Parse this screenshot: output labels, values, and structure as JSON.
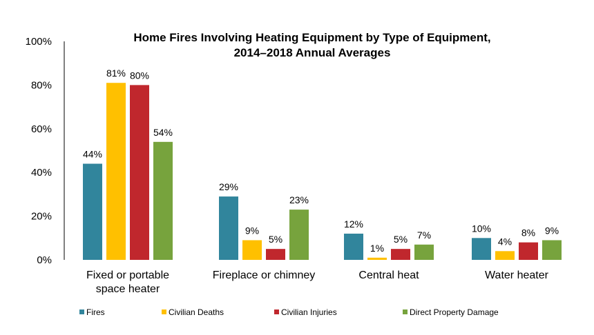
{
  "chart_data": {
    "type": "bar",
    "title": [
      "Home Fires Involving Heating Equipment by Type of Equipment,",
      "2014–2018 Annual Averages"
    ],
    "categories": [
      [
        "Fixed or portable",
        "space heater"
      ],
      [
        "Fireplace or chimney"
      ],
      [
        "Central heat"
      ],
      [
        "Water heater"
      ]
    ],
    "series": [
      {
        "name": "Fires",
        "color": "#31859C",
        "values": [
          44,
          29,
          12,
          10
        ]
      },
      {
        "name": "Civilian Deaths",
        "color": "#FFC000",
        "values": [
          81,
          9,
          1,
          4
        ]
      },
      {
        "name": "Civilian Injuries",
        "color": "#C0272D",
        "values": [
          80,
          5,
          5,
          8
        ]
      },
      {
        "name": "Direct Property Damage",
        "color": "#77A33D",
        "values": [
          54,
          23,
          7,
          9
        ]
      }
    ],
    "ylim": [
      0,
      100
    ],
    "yticks": [
      "0%",
      "20%",
      "40%",
      "60%",
      "80%",
      "100%"
    ],
    "value_suffix": "%",
    "grid": false,
    "legend_position": "bottom"
  }
}
